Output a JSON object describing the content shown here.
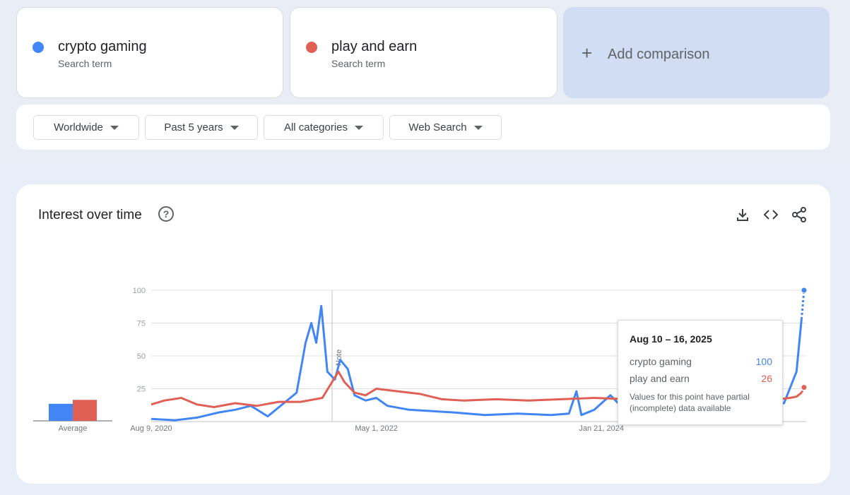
{
  "terms": [
    {
      "label": "crypto gaming",
      "sub": "Search term",
      "color": "#4285f4"
    },
    {
      "label": "play and earn",
      "sub": "Search term",
      "color": "#e06055"
    }
  ],
  "add_comparison": {
    "plus": "+",
    "label": "Add comparison"
  },
  "filters": {
    "region": "Worldwide",
    "time": "Past 5 years",
    "category": "All categories",
    "search_type": "Web Search"
  },
  "chart_card": {
    "title": "Interest over time",
    "help_icon": "?",
    "icons": [
      "download-icon",
      "embed-code-icon",
      "share-icon"
    ],
    "note_label": "Note",
    "average_label": "Average"
  },
  "tooltip": {
    "date": "Aug 10 – 16, 2025",
    "rows": [
      {
        "label": "crypto gaming",
        "value": "100"
      },
      {
        "label": "play and earn",
        "value": "26"
      }
    ],
    "note_line1": "Values for this point have partial",
    "note_line2": "(incomplete) data available"
  },
  "chart_data": {
    "type": "line",
    "title": "Interest over time",
    "xlabel": "",
    "ylabel": "",
    "ylim": [
      0,
      100
    ],
    "y_ticks": [
      25,
      50,
      75,
      100
    ],
    "x_tick_labels": [
      "Aug 9, 2020",
      "May 1, 2022",
      "Jan 21, 2024"
    ],
    "x_range": [
      "2020-08-09",
      "2025-08-16"
    ],
    "grid": true,
    "legend": "top",
    "averages": [
      {
        "name": "crypto gaming",
        "value": 13
      },
      {
        "name": "play and earn",
        "value": 16
      }
    ],
    "series": [
      {
        "name": "crypto gaming",
        "color": "#4285f4",
        "points": [
          [
            "2020-08-09",
            2
          ],
          [
            "2020-10-15",
            1
          ],
          [
            "2020-12-15",
            3
          ],
          [
            "2021-02-15",
            7
          ],
          [
            "2021-04-01",
            9
          ],
          [
            "2021-05-15",
            12
          ],
          [
            "2021-07-01",
            4
          ],
          [
            "2021-08-15",
            14
          ],
          [
            "2021-09-20",
            22
          ],
          [
            "2021-10-15",
            60
          ],
          [
            "2021-10-31",
            75
          ],
          [
            "2021-11-14",
            60
          ],
          [
            "2021-11-28",
            88
          ],
          [
            "2021-12-15",
            38
          ],
          [
            "2022-01-05",
            32
          ],
          [
            "2022-01-20",
            47
          ],
          [
            "2022-02-10",
            40
          ],
          [
            "2022-03-01",
            20
          ],
          [
            "2022-04-01",
            16
          ],
          [
            "2022-05-01",
            18
          ],
          [
            "2022-06-01",
            12
          ],
          [
            "2022-08-01",
            9
          ],
          [
            "2022-10-01",
            8
          ],
          [
            "2022-12-01",
            7
          ],
          [
            "2023-03-01",
            5
          ],
          [
            "2023-06-01",
            6
          ],
          [
            "2023-09-01",
            5
          ],
          [
            "2023-10-22",
            6
          ],
          [
            "2023-11-12",
            23
          ],
          [
            "2023-11-26",
            5
          ],
          [
            "2024-01-01",
            9
          ],
          [
            "2024-02-15",
            20
          ],
          [
            "2024-03-15",
            12
          ],
          [
            "2024-05-01",
            14
          ],
          [
            "2024-07-01",
            13
          ],
          [
            "2024-10-01",
            12
          ],
          [
            "2025-01-01",
            14
          ],
          [
            "2025-04-01",
            12
          ],
          [
            "2025-06-15",
            14
          ],
          [
            "2025-07-20",
            38
          ],
          [
            "2025-08-03",
            78
          ],
          [
            "2025-08-10",
            100
          ]
        ]
      },
      {
        "name": "play and earn",
        "color": "#e06055",
        "points": [
          [
            "2020-08-09",
            13
          ],
          [
            "2020-09-15",
            16
          ],
          [
            "2020-11-01",
            18
          ],
          [
            "2020-12-15",
            13
          ],
          [
            "2021-02-01",
            11
          ],
          [
            "2021-04-01",
            14
          ],
          [
            "2021-06-01",
            12
          ],
          [
            "2021-08-01",
            15
          ],
          [
            "2021-10-01",
            15
          ],
          [
            "2021-12-01",
            18
          ],
          [
            "2022-01-15",
            38
          ],
          [
            "2022-02-01",
            30
          ],
          [
            "2022-03-01",
            22
          ],
          [
            "2022-04-01",
            20
          ],
          [
            "2022-05-01",
            25
          ],
          [
            "2022-07-01",
            23
          ],
          [
            "2022-09-01",
            21
          ],
          [
            "2022-11-01",
            17
          ],
          [
            "2023-01-01",
            16
          ],
          [
            "2023-04-01",
            17
          ],
          [
            "2023-07-01",
            16
          ],
          [
            "2023-10-01",
            17
          ],
          [
            "2024-01-01",
            18
          ],
          [
            "2024-04-01",
            17
          ],
          [
            "2024-07-01",
            17
          ],
          [
            "2024-10-01",
            16
          ],
          [
            "2025-01-01",
            17
          ],
          [
            "2025-04-01",
            16
          ],
          [
            "2025-06-01",
            17
          ],
          [
            "2025-07-01",
            18
          ],
          [
            "2025-07-20",
            19
          ],
          [
            "2025-08-03",
            22
          ],
          [
            "2025-08-10",
            26
          ]
        ]
      }
    ]
  }
}
